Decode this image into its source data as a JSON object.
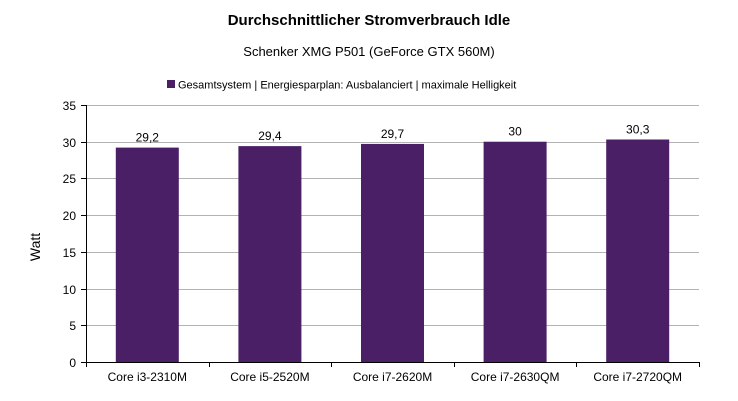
{
  "chart_data": {
    "type": "bar",
    "title": "Durchschnittlicher Stromverbrauch Idle",
    "subtitle": "Schenker XMG P501 (GeForce GTX 560M)",
    "xlabel": "",
    "ylabel": "Watt",
    "categories": [
      "Core i3-2310M",
      "Core i5-2520M",
      "Core i7-2620M",
      "Core i7-2630QM",
      "Core i7-2720QM"
    ],
    "series": [
      {
        "name": "Gesamtsystem | Energiesparplan: Ausbalanciert | maximale Helligkeit",
        "values": [
          29.2,
          29.4,
          29.7,
          30,
          30.3
        ],
        "value_labels": [
          "29,2",
          "29,4",
          "29,7",
          "30",
          "30,3"
        ],
        "color": "#4b1f66"
      }
    ],
    "ylim": [
      0,
      35
    ],
    "yticks": [
      0,
      5,
      10,
      15,
      20,
      25,
      30,
      35
    ],
    "ytick_labels": [
      "0",
      "5",
      "10",
      "15",
      "20",
      "25",
      "30",
      "35"
    ],
    "grid": true,
    "legend_position": "top",
    "colors": {
      "bar": "#4b1f66",
      "grid": "#b3b3b3",
      "axis": "#000000",
      "background": "#ffffff"
    }
  }
}
